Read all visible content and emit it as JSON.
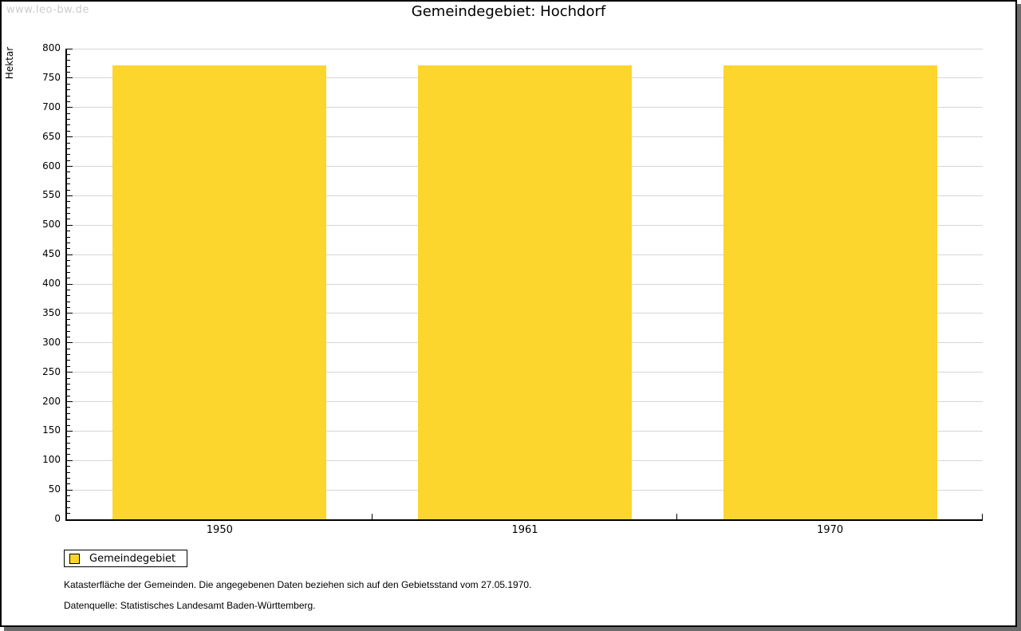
{
  "watermark": "www.leo-bw.de",
  "title": "Gemeindegebiet: Hochdorf",
  "chart_data": {
    "type": "bar",
    "title": "Gemeindegebiet: Hochdorf",
    "categories": [
      "1950",
      "1961",
      "1970"
    ],
    "series": [
      {
        "name": "Gemeindegebiet",
        "values": [
          772,
          772,
          772
        ]
      }
    ],
    "xlabel": "",
    "ylabel": "Hektar",
    "ylim": [
      0,
      800
    ],
    "ytick_step": 50,
    "ytick_minor_step": 10,
    "grid": true,
    "legend_position": "bottom-left",
    "bar_color": "#fcd52d"
  },
  "legend": {
    "items": [
      {
        "label": "Gemeindegebiet",
        "color": "#fcd52d"
      }
    ]
  },
  "footnotes": [
    "Katasterfläche der Gemeinden. Die angegebenen Daten beziehen sich auf den Gebietsstand vom 27.05.1970.",
    "Datenquelle: Statistisches Landesamt Baden-Württemberg."
  ],
  "colors": {
    "bar": "#fcd52d",
    "grid": "#d6d6d6",
    "axis": "#000000",
    "watermark": "#cccccc",
    "frame_shadow": "#6b6b6b"
  }
}
